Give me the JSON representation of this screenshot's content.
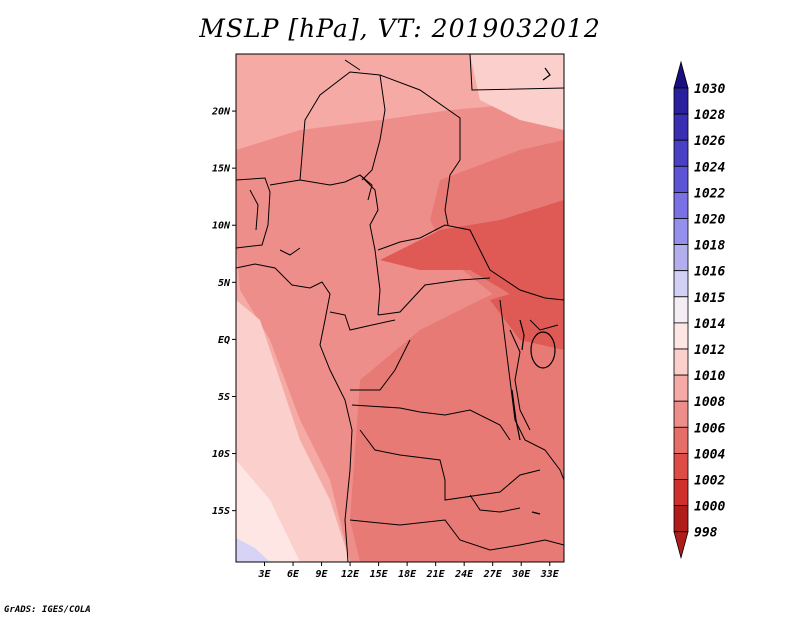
{
  "title": "MSLP [hPa], VT: 2019032012",
  "footer": "GrADS: IGES/COLA",
  "map": {
    "lon_range": [
      0,
      34.5
    ],
    "lat_range": [
      -19.5,
      25
    ],
    "lon_ticks": [
      "3E",
      "6E",
      "9E",
      "12E",
      "15E",
      "18E",
      "21E",
      "24E",
      "27E",
      "30E",
      "33E"
    ],
    "lon_tick_values": [
      3,
      6,
      9,
      12,
      15,
      18,
      21,
      24,
      27,
      30,
      33
    ],
    "lat_ticks": [
      "20N",
      "15N",
      "10N",
      "5N",
      "EQ",
      "5S",
      "10S",
      "15S"
    ],
    "lat_tick_values": [
      20,
      15,
      10,
      5,
      0,
      -5,
      -10,
      -15
    ]
  },
  "colorbar": {
    "levels": [
      "1030",
      "1028",
      "1026",
      "1024",
      "1022",
      "1020",
      "1018",
      "1016",
      "1015",
      "1014",
      "1012",
      "1010",
      "1008",
      "1006",
      "1004",
      "1002",
      "1000",
      "998"
    ],
    "colors": [
      "#1d1485",
      "#2a1f9c",
      "#3a2fb3",
      "#4a40c6",
      "#5d55d6",
      "#7a72e4",
      "#958fee",
      "#b3afee",
      "#d2d0f5",
      "#f4eef4",
      "#fde6e4",
      "#fbd0cc",
      "#f6aaa6",
      "#ee8e8a",
      "#e66d68",
      "#de4c47",
      "#cf302c",
      "#b01c1a"
    ],
    "top_color": "#1a0f80",
    "bottom_color": "#b01c1a"
  },
  "colors": {
    "p1010": "#f6aaa6",
    "p1008": "#ee8e8a",
    "p1006": "#e87a75",
    "p1004": "#e05a55",
    "p1012": "#fbd0cc",
    "p1014": "#fde6e4",
    "p1015": "#d6d3f6",
    "border": "#000000"
  }
}
